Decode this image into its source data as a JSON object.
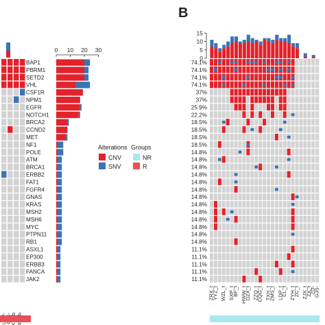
{
  "panel_label": "B",
  "colors": {
    "cnv": "#e3222b",
    "snv": "#3a74b3",
    "none": "#d3d3d3",
    "nr": "#a8e8ef",
    "r": "#e8505a",
    "grid_bg": "#ffffff"
  },
  "legend": {
    "alterations_title": "Alterations",
    "groups_title": "Groups",
    "cnv_label": "CNV",
    "snv_label": "SNV",
    "nr_label": "NR",
    "r_label": "R"
  },
  "chart_data": [
    {
      "type": "heatmap",
      "panel": "A",
      "rows": [
        "BAP1",
        "PBRM1",
        "SETD2",
        "VHL",
        "CSF1R",
        "NPM1",
        "EGFR",
        "NOTCH1",
        "BRCA2",
        "CCND2",
        "MET",
        "NF1",
        "POLE",
        "ATM",
        "BRCA1",
        "ERBB2",
        "FAT1",
        "FGFR4",
        "GNAS",
        "KRAS",
        "MSH2",
        "MSH6",
        "MYC",
        "PTPN11",
        "RB1",
        "ASXL1",
        "EP300",
        "ERBB3",
        "FANCA",
        "JAK2"
      ],
      "visible_sample_labels": [
        "LDP-",
        "CJS-",
        "WXM_b",
        "ZXC_b"
      ],
      "bar_axis_ticks": [
        0,
        10,
        20,
        30
      ],
      "gene_bars": {
        "cnv": [
          20,
          20,
          20,
          14,
          19,
          17,
          17,
          16,
          8,
          8,
          7,
          1,
          1,
          1,
          1,
          1,
          1,
          1,
          1,
          1,
          1,
          1,
          1,
          1,
          1,
          1,
          1,
          1,
          1,
          1
        ],
        "snv": [
          4,
          3,
          3,
          10,
          0,
          0,
          1,
          1,
          1,
          0,
          1,
          4,
          4,
          3,
          3,
          3,
          3,
          3,
          3,
          3,
          3,
          3,
          3,
          3,
          3,
          2,
          2,
          2,
          2,
          2
        ]
      }
    },
    {
      "type": "heatmap",
      "panel": "B",
      "top_axis_ticks": [
        0,
        5,
        10,
        15
      ],
      "row_percentages": [
        "74.1%",
        "74.1%",
        "74.1%",
        "74.1%",
        "37%",
        "37%",
        "25.9%",
        "22.2%",
        "18.5%",
        "18.5%",
        "18.5%",
        "18.5%",
        "14.8%",
        "14.8%",
        "14.8%",
        "14.8%",
        "14.8%",
        "14.8%",
        "14.8%",
        "14.8%",
        "14.8%",
        "14.8%",
        "14.8%",
        "14.8%",
        "14.8%",
        "11.1%",
        "11.1%",
        "11.1%",
        "11.1%",
        "11.1%"
      ],
      "sample_labels": [
        "ZRX_t",
        "YYZ_t",
        "",
        "WZL_t",
        "",
        "SXP_t",
        "BF_t",
        "",
        "HWW_t",
        "DZX_t",
        "",
        "ZZQ_t",
        "CQG_t",
        "",
        "TXH_t",
        "ZMS_t",
        "",
        "LDP_t",
        "CL_t",
        "",
        "ZYH_t",
        "ZC_t",
        "",
        "ZJX_t",
        "ZX_t",
        "ZD-",
        "GJS-"
      ],
      "sample_totals": {
        "cnv": [
          7,
          6,
          4,
          6,
          7,
          9,
          10,
          9,
          9,
          10,
          9,
          10,
          8,
          11,
          10,
          9,
          11,
          10,
          10,
          9,
          7,
          6,
          0,
          1,
          0,
          1,
          0
        ],
        "snv": [
          4,
          3,
          2,
          2,
          3,
          4,
          3,
          1,
          2,
          4,
          3,
          1,
          2,
          1,
          2,
          2,
          3,
          2,
          2,
          5,
          2,
          3,
          0,
          2,
          0,
          1,
          0
        ]
      },
      "matrix_cnv_rows": [
        "111111111111111111111000000",
        "111111111111111111111000000",
        "111111111111111111111000000",
        "111111111111111111111000000",
        "000001111111111111100000000",
        "000001111011111101100000000",
        "000000111010001101100000000",
        "000000001010100100100000000",
        "000010000100010000000000000",
        "000100001000100000000000000",
        "000000000000000010000000000",
        "001000000100000000000000000",
        "000000000100000000010000000",
        "000100000000000000000000000",
        "000000000000100000000000000",
        "000000000000000000010000000",
        "001000000000000000000000000",
        "000000100000000000000000000",
        "000000000000000000001000000",
        "010000000000000000000000000",
        "010100000000000000001000000",
        "010000100000000000001000000",
        "010000000000000000001000000",
        "000000000000000000000000000",
        "000000100000000000000000000",
        "000000000000000000001000000",
        "000000000000000000010000000",
        "000000000000000010001000000",
        "000000000001000001000000000",
        "000000001000100000000000000"
      ],
      "matrix_snv_rows": [
        "001001100111010011010000000",
        "010000100000001101010000000",
        "000100000100000011001000000",
        "000100001000010000101000000",
        "000000000000000000000000000",
        "000000000000000000000000000",
        "000000000000000000000000000",
        "000000000000000000001000000",
        "000100000000000000100000000",
        "000000000010000001000000000",
        "000000000000000000010000000",
        "000000000100000000000000000",
        "000000010000000000000000000",
        "001000000000000000010000000",
        "000000000001000010000000000",
        "000000100000000000000000000",
        "000000100000000000000000000",
        "000000000000000010000000000",
        "000000000000000000000100000",
        "000000000000000000001000000",
        "000001000000000000000000000",
        "000010000000000000000000000",
        "000000000000000000000000000",
        "000000000000000000001000000",
        "000000000000000000000000000",
        "000000000000000000000000000",
        "000000000000000000000000000",
        "000000000000000000000000000",
        "000000000000000000001000000",
        "000000000000000000000000000"
      ],
      "groups": "NR"
    }
  ]
}
